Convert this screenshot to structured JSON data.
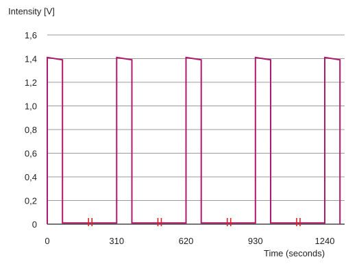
{
  "chart_data": {
    "type": "line",
    "ylabel": "Intensity [V]",
    "xlabel": "Time (seconds)",
    "ylim": [
      0,
      1.6
    ],
    "xlim": [
      0,
      1310
    ],
    "y_ticks": [
      0,
      0.2,
      0.4,
      0.6,
      0.8,
      1.0,
      1.2,
      1.4,
      1.6
    ],
    "y_tick_labels": [
      "0",
      "0,2",
      "0,4",
      "0,6",
      "0,8",
      "1,0",
      "1,2",
      "1,4",
      "1,6"
    ],
    "x_ticks": [
      0,
      310,
      620,
      930,
      1240
    ],
    "x_tick_labels": [
      "0",
      "310",
      "620",
      "930",
      "1240"
    ],
    "grid": "horizontal",
    "series": [
      {
        "color": "#b0186e",
        "points": [
          [
            0,
            0
          ],
          [
            0,
            1.41
          ],
          [
            68,
            1.39
          ],
          [
            68,
            0.01
          ],
          [
            310,
            0.01
          ],
          [
            310,
            1.41
          ],
          [
            378,
            1.39
          ],
          [
            378,
            0.01
          ],
          [
            620,
            0.01
          ],
          [
            620,
            1.41
          ],
          [
            688,
            1.39
          ],
          [
            688,
            0.01
          ],
          [
            930,
            0.01
          ],
          [
            930,
            1.41
          ],
          [
            998,
            1.39
          ],
          [
            998,
            0.01
          ],
          [
            1240,
            0.01
          ],
          [
            1240,
            1.41
          ],
          [
            1308,
            1.39
          ],
          [
            1308,
            0
          ]
        ]
      }
    ],
    "axis_break_x": [
      192,
      502,
      812,
      1122
    ],
    "colors": {
      "line": "#b0186e",
      "break": "#e02020",
      "grid": "#9a9a9a",
      "axis": "#222222"
    }
  }
}
